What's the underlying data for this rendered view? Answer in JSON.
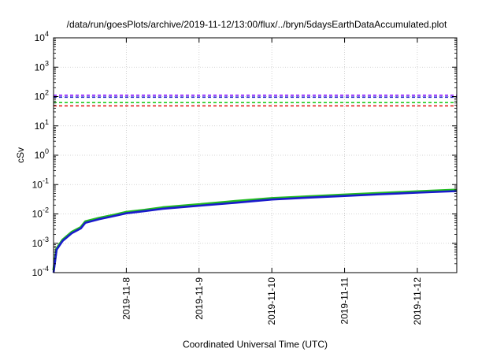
{
  "chart_data": {
    "type": "line",
    "title": "/data/run/goesPlots/archive/2019-11-12/13:00/flux/../bryn/5daysEarthDataAccumulated.plot",
    "xlabel": "Coordinated Universal Time (UTC)",
    "ylabel": "cSv",
    "y_scale": "log",
    "ylim": [
      0.0001,
      10000
    ],
    "xlim": [
      "2019-11-07",
      "2019-11-12 13:00"
    ],
    "x_ticks": [
      "2019-11-8",
      "2019-11-9",
      "2019-11-10",
      "2019-11-11",
      "2019-11-12"
    ],
    "y_ticks": [
      {
        "base": "10",
        "exp": "-4",
        "value": 0.0001
      },
      {
        "base": "10",
        "exp": "-3",
        "value": 0.001
      },
      {
        "base": "10",
        "exp": "-2",
        "value": 0.01
      },
      {
        "base": "10",
        "exp": "-1",
        "value": 0.1
      },
      {
        "base": "10",
        "exp": "0",
        "value": 1
      },
      {
        "base": "10",
        "exp": "1",
        "value": 10
      },
      {
        "base": "10",
        "exp": "2",
        "value": 100
      },
      {
        "base": "10",
        "exp": "3",
        "value": 1000
      },
      {
        "base": "10",
        "exp": "4",
        "value": 10000
      }
    ],
    "grid": true,
    "reference_lines": [
      {
        "value": 110,
        "color": "#8b1aff",
        "dashed": true
      },
      {
        "value": 95,
        "color": "#1a1acc",
        "dashed": true
      },
      {
        "value": 62,
        "color": "#22cc22",
        "dashed": true
      },
      {
        "value": 48,
        "color": "#e01010",
        "dashed": true
      }
    ],
    "series": [
      {
        "color": "#22bb22",
        "x": [
          "2019-11-07 00:00",
          "2019-11-07 01:00",
          "2019-11-07 03:00",
          "2019-11-07 06:00",
          "2019-11-07 09:00",
          "2019-11-07 10:30",
          "2019-11-07 15:00",
          "2019-11-07 20:00",
          "2019-11-08 00:00",
          "2019-11-08 06:00",
          "2019-11-08 12:00",
          "2019-11-09 00:00",
          "2019-11-09 12:00",
          "2019-11-10 00:00",
          "2019-11-10 12:00",
          "2019-11-11 00:00",
          "2019-11-11 12:00",
          "2019-11-12 00:00",
          "2019-11-12 13:00"
        ],
        "y": [
          0.00012,
          0.00065,
          0.0013,
          0.0024,
          0.0035,
          0.0055,
          0.0072,
          0.0092,
          0.0115,
          0.0135,
          0.0165,
          0.021,
          0.027,
          0.034,
          0.039,
          0.045,
          0.051,
          0.058,
          0.066
        ]
      },
      {
        "color": "#1a1acc",
        "x": [
          "2019-11-07 00:00",
          "2019-11-07 01:00",
          "2019-11-07 03:00",
          "2019-11-07 06:00",
          "2019-11-07 09:00",
          "2019-11-07 10:30",
          "2019-11-07 15:00",
          "2019-11-07 20:00",
          "2019-11-08 00:00",
          "2019-11-08 06:00",
          "2019-11-08 12:00",
          "2019-11-09 00:00",
          "2019-11-09 12:00",
          "2019-11-10 00:00",
          "2019-11-10 12:00",
          "2019-11-11 00:00",
          "2019-11-11 12:00",
          "2019-11-12 00:00",
          "2019-11-12 13:00"
        ],
        "y": [
          0.0001,
          0.0006,
          0.0012,
          0.0022,
          0.0032,
          0.005,
          0.0066,
          0.0085,
          0.0105,
          0.0125,
          0.015,
          0.019,
          0.024,
          0.031,
          0.036,
          0.041,
          0.047,
          0.053,
          0.06
        ]
      }
    ]
  }
}
